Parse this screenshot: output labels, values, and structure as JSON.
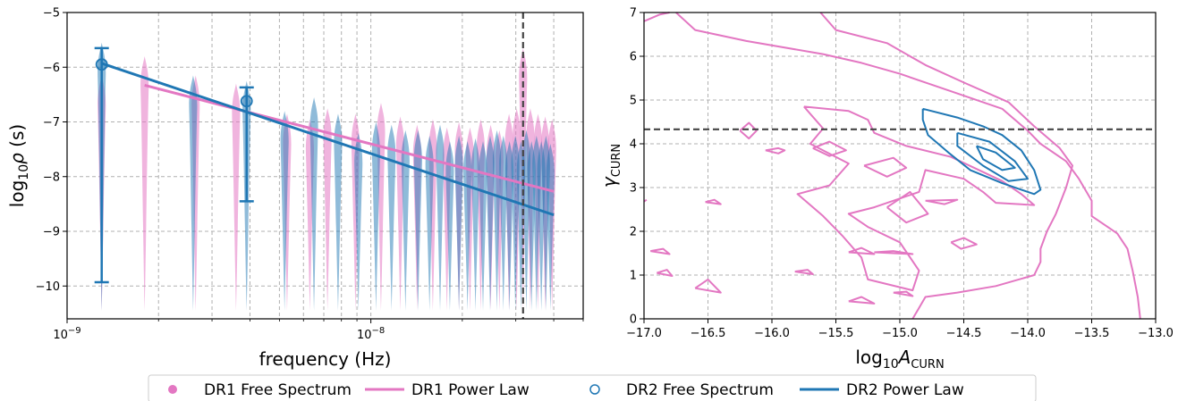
{
  "colors": {
    "dr1": "#e377c2",
    "dr2": "#1f77b4",
    "ref_line": "#444444"
  },
  "chart_data": [
    {
      "type": "violin",
      "xlabel": "frequency (Hz)",
      "ylabel": "log10ρ (s)",
      "xscale": "log",
      "xlim": [
        1e-09,
        5e-08
      ],
      "ylim": [
        -10.6,
        -5
      ],
      "x_tick_labels": [
        "10−9",
        "10−8"
      ],
      "y_tick_values": [
        -10,
        -9,
        -8,
        -7,
        -6,
        -5
      ],
      "y_tick_labels": [
        "−10",
        "−9",
        "−8",
        "−7",
        "−6",
        "−5"
      ],
      "vertical_ref_x": 3.17e-08,
      "series": [
        {
          "name": "DR1 Free Spectrum",
          "color": "#e377c2",
          "freqs": [
            1.3e-09,
            1.8e-09,
            2.65e-09,
            3.6e-09,
            5.3e-09,
            6.3e-09,
            7.2e-09,
            8.9e-09,
            1.08e-08,
            1.25e-08,
            1.42e-08,
            1.6e-08,
            1.78e-08,
            1.95e-08,
            2.12e-08,
            2.3e-08,
            2.48e-08,
            2.65e-08,
            2.85e-08,
            3.02e-08,
            3.17e-08,
            3.35e-08,
            3.55e-08,
            3.75e-08,
            3.95e-08
          ],
          "centers": [
            -6.6,
            -6.25,
            -6.6,
            -6.75,
            -7.3,
            -7.4,
            -7.2,
            -7.3,
            -7.1,
            -7.35,
            -7.5,
            -7.4,
            -7.55,
            -7.45,
            -7.55,
            -7.4,
            -7.5,
            -7.6,
            -7.3,
            -7.2,
            -6.1,
            -7.2,
            -7.3,
            -7.35,
            -7.4
          ]
        },
        {
          "name": "DR2 Free Spectrum",
          "color": "#1f77b4",
          "points": [
            {
              "x": 1.3e-09,
              "y": -5.95,
              "ylo": -9.93,
              "yhi": -5.65
            },
            {
              "x": 3.9e-09,
              "y": -6.62,
              "ylo": -8.45,
              "yhi": -6.37
            }
          ],
          "freqs": [
            1.3e-09,
            2.6e-09,
            3.9e-09,
            5.2e-09,
            6.5e-09,
            7.8e-09,
            9.1e-09,
            1.04e-08,
            1.17e-08,
            1.3e-08,
            1.43e-08,
            1.56e-08,
            1.69e-08,
            1.82e-08,
            1.95e-08,
            2.08e-08,
            2.21e-08,
            2.34e-08,
            2.47e-08,
            2.6e-08,
            2.73e-08,
            2.86e-08,
            2.99e-08,
            3.12e-08,
            3.25e-08,
            3.38e-08,
            3.51e-08,
            3.64e-08,
            3.77e-08,
            3.9e-08
          ],
          "centers": [
            -6.0,
            -6.6,
            -6.7,
            -7.25,
            -7.0,
            -7.3,
            -7.65,
            -7.45,
            -7.5,
            -7.6,
            -7.6,
            -7.7,
            -7.5,
            -7.8,
            -7.7,
            -7.8,
            -7.75,
            -7.8,
            -7.7,
            -7.6,
            -7.7,
            -7.8,
            -7.7,
            -7.8,
            -7.6,
            -7.8,
            -7.7,
            -7.8,
            -7.7,
            -7.85
          ]
        },
        {
          "name": "DR1 Power Law",
          "color": "#e377c2",
          "x": [
            1.8e-09,
            4e-08
          ],
          "y": [
            -6.33,
            -8.27
          ]
        },
        {
          "name": "DR2 Power Law",
          "color": "#1f77b4",
          "x": [
            1.3e-09,
            4e-08
          ],
          "y": [
            -5.93,
            -8.7
          ]
        }
      ]
    },
    {
      "type": "contour",
      "xlabel": "log10ACURN",
      "ylabel": "γCURN",
      "xlim": [
        -17.0,
        -13.0
      ],
      "ylim": [
        0,
        7
      ],
      "x_tick_values": [
        -17.0,
        -16.5,
        -16.0,
        -15.5,
        -15.0,
        -14.5,
        -14.0,
        -13.5,
        -13.0
      ],
      "x_tick_labels": [
        "−17.0",
        "−16.5",
        "−16.0",
        "−15.5",
        "−15.0",
        "−14.5",
        "−14.0",
        "−13.5",
        "−13.0"
      ],
      "y_tick_values": [
        0,
        1,
        2,
        3,
        4,
        5,
        6,
        7
      ],
      "y_tick_labels": [
        "0",
        "1",
        "2",
        "3",
        "4",
        "5",
        "6",
        "7"
      ],
      "horizontal_ref_y": 4.33,
      "series": [
        {
          "name": "DR1",
          "color": "#e377c2",
          "contours": [
            [
              [
                -16.75,
                7.0
              ],
              [
                -16.6,
                6.6
              ],
              [
                -16.2,
                6.35
              ],
              [
                -15.6,
                6.05
              ],
              [
                -15.3,
                5.85
              ],
              [
                -15.0,
                5.6
              ],
              [
                -14.6,
                5.2
              ],
              [
                -14.2,
                4.8
              ],
              [
                -14.0,
                4.3
              ],
              [
                -13.9,
                4.0
              ],
              [
                -13.7,
                3.6
              ],
              [
                -13.6,
                3.2
              ],
              [
                -13.5,
                2.7
              ],
              [
                -13.5,
                2.35
              ],
              [
                -13.3,
                1.95
              ],
              [
                -13.22,
                1.6
              ],
              [
                -13.18,
                1.1
              ],
              [
                -13.14,
                0.5
              ],
              [
                -13.12,
                0
              ]
            ],
            [
              [
                -17.0,
                6.8
              ],
              [
                -16.88,
                6.95
              ],
              [
                -16.8,
                7.0
              ]
            ],
            [
              [
                -15.62,
                7.0
              ],
              [
                -15.5,
                6.6
              ],
              [
                -15.1,
                6.3
              ],
              [
                -14.8,
                5.8
              ],
              [
                -14.5,
                5.4
              ],
              [
                -14.15,
                4.95
              ],
              [
                -13.95,
                4.4
              ],
              [
                -13.75,
                3.9
              ],
              [
                -13.65,
                3.5
              ],
              [
                -13.7,
                3.0
              ],
              [
                -13.78,
                2.4
              ],
              [
                -13.85,
                2.0
              ],
              [
                -13.9,
                1.6
              ],
              [
                -13.9,
                1.3
              ],
              [
                -13.95,
                1.0
              ],
              [
                -14.25,
                0.75
              ],
              [
                -14.55,
                0.6
              ],
              [
                -14.8,
                0.5
              ],
              [
                -14.85,
                0.25
              ],
              [
                -14.9,
                0
              ]
            ],
            [
              [
                -15.75,
                4.85
              ],
              [
                -15.4,
                4.75
              ],
              [
                -15.25,
                4.55
              ],
              [
                -15.2,
                4.25
              ],
              [
                -14.95,
                3.95
              ],
              [
                -14.6,
                3.7
              ],
              [
                -14.2,
                3.15
              ],
              [
                -14.05,
                2.85
              ],
              [
                -13.95,
                2.6
              ],
              [
                -14.25,
                2.65
              ],
              [
                -14.35,
                2.9
              ],
              [
                -14.5,
                3.2
              ],
              [
                -14.8,
                3.4
              ],
              [
                -14.85,
                2.9
              ],
              [
                -15.2,
                2.55
              ],
              [
                -15.4,
                2.4
              ],
              [
                -15.25,
                2.1
              ],
              [
                -15.0,
                1.75
              ],
              [
                -14.85,
                1.1
              ],
              [
                -14.9,
                0.65
              ],
              [
                -15.25,
                0.9
              ],
              [
                -15.3,
                1.4
              ],
              [
                -15.45,
                1.9
              ],
              [
                -15.6,
                2.35
              ],
              [
                -15.8,
                2.85
              ],
              [
                -15.55,
                3.05
              ],
              [
                -15.4,
                3.55
              ],
              [
                -15.7,
                4.0
              ],
              [
                -15.6,
                4.35
              ],
              [
                -15.75,
                4.85
              ]
            ],
            [
              [
                -16.25,
                4.3
              ],
              [
                -16.18,
                4.48
              ],
              [
                -16.12,
                4.3
              ],
              [
                -16.18,
                4.12
              ],
              [
                -16.25,
                4.3
              ]
            ],
            [
              [
                -16.05,
                3.85
              ],
              [
                -15.95,
                3.9
              ],
              [
                -15.9,
                3.85
              ],
              [
                -15.95,
                3.78
              ],
              [
                -16.05,
                3.85
              ]
            ],
            [
              [
                -15.68,
                3.9
              ],
              [
                -15.55,
                4.05
              ],
              [
                -15.42,
                3.85
              ],
              [
                -15.55,
                3.72
              ],
              [
                -15.68,
                3.9
              ]
            ],
            [
              [
                -15.28,
                3.5
              ],
              [
                -15.05,
                3.68
              ],
              [
                -14.95,
                3.45
              ],
              [
                -15.1,
                3.25
              ],
              [
                -15.28,
                3.5
              ]
            ],
            [
              [
                -15.1,
                2.55
              ],
              [
                -14.92,
                2.9
              ],
              [
                -14.78,
                2.4
              ],
              [
                -14.95,
                2.2
              ],
              [
                -15.1,
                2.55
              ]
            ],
            [
              [
                -14.8,
                2.7
              ],
              [
                -14.55,
                2.72
              ],
              [
                -14.65,
                2.62
              ],
              [
                -14.8,
                2.7
              ]
            ],
            [
              [
                -16.52,
                2.67
              ],
              [
                -16.45,
                2.72
              ],
              [
                -16.4,
                2.62
              ],
              [
                -16.52,
                2.67
              ]
            ],
            [
              [
                -17.0,
                2.68
              ],
              [
                -16.98,
                2.72
              ]
            ],
            [
              [
                -16.95,
                1.55
              ],
              [
                -16.85,
                1.6
              ],
              [
                -16.8,
                1.48
              ],
              [
                -16.95,
                1.55
              ]
            ],
            [
              [
                -16.9,
                1.05
              ],
              [
                -16.82,
                1.12
              ],
              [
                -16.78,
                0.98
              ],
              [
                -16.9,
                1.05
              ]
            ],
            [
              [
                -16.6,
                0.7
              ],
              [
                -16.5,
                0.9
              ],
              [
                -16.4,
                0.6
              ],
              [
                -16.6,
                0.7
              ]
            ],
            [
              [
                -15.2,
                1.52
              ],
              [
                -15.05,
                1.55
              ],
              [
                -14.9,
                1.48
              ],
              [
                -15.2,
                1.52
              ]
            ],
            [
              [
                -15.4,
                1.52
              ],
              [
                -15.3,
                1.62
              ],
              [
                -15.2,
                1.48
              ],
              [
                -15.4,
                1.52
              ]
            ],
            [
              [
                -15.82,
                1.08
              ],
              [
                -15.72,
                1.12
              ],
              [
                -15.68,
                1.02
              ],
              [
                -15.82,
                1.08
              ]
            ],
            [
              [
                -15.4,
                0.4
              ],
              [
                -15.3,
                0.5
              ],
              [
                -15.2,
                0.35
              ],
              [
                -15.4,
                0.4
              ]
            ],
            [
              [
                -15.05,
                0.6
              ],
              [
                -14.95,
                0.62
              ],
              [
                -14.9,
                0.52
              ],
              [
                -15.05,
                0.6
              ]
            ],
            [
              [
                -14.6,
                1.75
              ],
              [
                -14.5,
                1.85
              ],
              [
                -14.4,
                1.7
              ],
              [
                -14.52,
                1.6
              ],
              [
                -14.6,
                1.75
              ]
            ]
          ]
        },
        {
          "name": "DR2",
          "color": "#1f77b4",
          "contours": [
            [
              [
                -14.82,
                4.8
              ],
              [
                -14.55,
                4.6
              ],
              [
                -14.35,
                4.4
              ],
              [
                -14.2,
                4.2
              ],
              [
                -14.05,
                3.85
              ],
              [
                -13.95,
                3.4
              ],
              [
                -13.9,
                2.95
              ],
              [
                -13.95,
                2.85
              ],
              [
                -14.2,
                3.1
              ],
              [
                -14.45,
                3.4
              ],
              [
                -14.62,
                3.8
              ],
              [
                -14.78,
                4.2
              ],
              [
                -14.82,
                4.55
              ],
              [
                -14.82,
                4.8
              ]
            ],
            [
              [
                -14.55,
                4.25
              ],
              [
                -14.3,
                4.05
              ],
              [
                -14.1,
                3.6
              ],
              [
                -14.0,
                3.2
              ],
              [
                -14.15,
                3.15
              ],
              [
                -14.35,
                3.5
              ],
              [
                -14.55,
                3.95
              ],
              [
                -14.55,
                4.25
              ]
            ],
            [
              [
                -14.4,
                3.95
              ],
              [
                -14.25,
                3.8
              ],
              [
                -14.1,
                3.45
              ],
              [
                -14.2,
                3.4
              ],
              [
                -14.35,
                3.65
              ],
              [
                -14.4,
                3.95
              ]
            ]
          ]
        }
      ]
    }
  ],
  "legend": [
    {
      "label": "DR1 Free Spectrum",
      "marker": "filled-circle",
      "color": "#e377c2"
    },
    {
      "label": "DR1 Power Law",
      "marker": "line",
      "color": "#e377c2"
    },
    {
      "label": "DR2 Free Spectrum",
      "marker": "open-circle",
      "color": "#1f77b4"
    },
    {
      "label": "DR2 Power Law",
      "marker": "line",
      "color": "#1f77b4"
    }
  ]
}
